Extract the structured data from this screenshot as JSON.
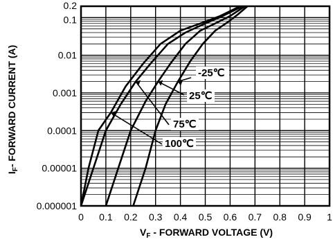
{
  "chart_data": {
    "type": "line",
    "xlabel": {
      "main": "V",
      "sub": "F",
      "rest": " - FORWARD VOLTAGE (V)"
    },
    "ylabel": {
      "main": "I",
      "sub": "F",
      "rest": "- FORWARD CURRENT (A)"
    },
    "xlim": [
      0,
      1
    ],
    "ylim": [
      1e-06,
      0.2
    ],
    "yscale": "log",
    "grid": true,
    "x_ticks": [
      "0",
      "0.1",
      "0.2",
      "0.3",
      "0.4",
      "0.5",
      "0.6",
      "0.7",
      "0.8",
      "0.9",
      "1"
    ],
    "y_ticks": [
      {
        "value": 1e-06,
        "label": "0.000001"
      },
      {
        "value": 1e-05,
        "label": "0.00001"
      },
      {
        "value": 0.0001,
        "label": "0.0001"
      },
      {
        "value": 0.001,
        "label": "0.001"
      },
      {
        "value": 0.01,
        "label": "0.01"
      },
      {
        "value": 0.1,
        "label": "0.1"
      },
      {
        "value": 0.2,
        "label": "0.2"
      }
    ],
    "series": [
      {
        "name": "100℃",
        "x": [
          0.0,
          0.03,
          0.07,
          0.12,
          0.18,
          0.25,
          0.32,
          0.4,
          0.48,
          0.56,
          0.64
        ],
        "y": [
          1e-06,
          1e-05,
          0.0001,
          0.0003,
          0.0015,
          0.006,
          0.02,
          0.045,
          0.07,
          0.11,
          0.2
        ]
      },
      {
        "name": "75℃",
        "x": [
          0.0,
          0.05,
          0.1,
          0.16,
          0.22,
          0.28,
          0.35,
          0.42,
          0.5,
          0.57,
          0.65
        ],
        "y": [
          1e-06,
          1e-05,
          0.0001,
          0.0005,
          0.002,
          0.006,
          0.02,
          0.04,
          0.07,
          0.11,
          0.2
        ]
      },
      {
        "name": "25℃",
        "x": [
          0.1,
          0.15,
          0.2,
          0.26,
          0.31,
          0.36,
          0.42,
          0.48,
          0.54,
          0.6,
          0.66
        ],
        "y": [
          1e-06,
          1e-05,
          0.0001,
          0.0006,
          0.002,
          0.006,
          0.02,
          0.045,
          0.07,
          0.11,
          0.2
        ]
      },
      {
        "name": "-25℃",
        "x": [
          0.21,
          0.26,
          0.3,
          0.34,
          0.39,
          0.44,
          0.49,
          0.54,
          0.59,
          0.63,
          0.67
        ],
        "y": [
          1e-06,
          1e-05,
          0.0001,
          0.0005,
          0.002,
          0.007,
          0.02,
          0.045,
          0.075,
          0.12,
          0.2
        ]
      }
    ],
    "annotations": [
      {
        "text": "-25℃",
        "series": "-25℃",
        "at_x": 0.39
      },
      {
        "text": "25℃",
        "series": "25℃",
        "at_x": 0.31
      },
      {
        "text": "75℃",
        "series": "75℃",
        "at_x": 0.22
      },
      {
        "text": "100℃",
        "series": "100℃",
        "at_x": 0.12
      }
    ]
  }
}
